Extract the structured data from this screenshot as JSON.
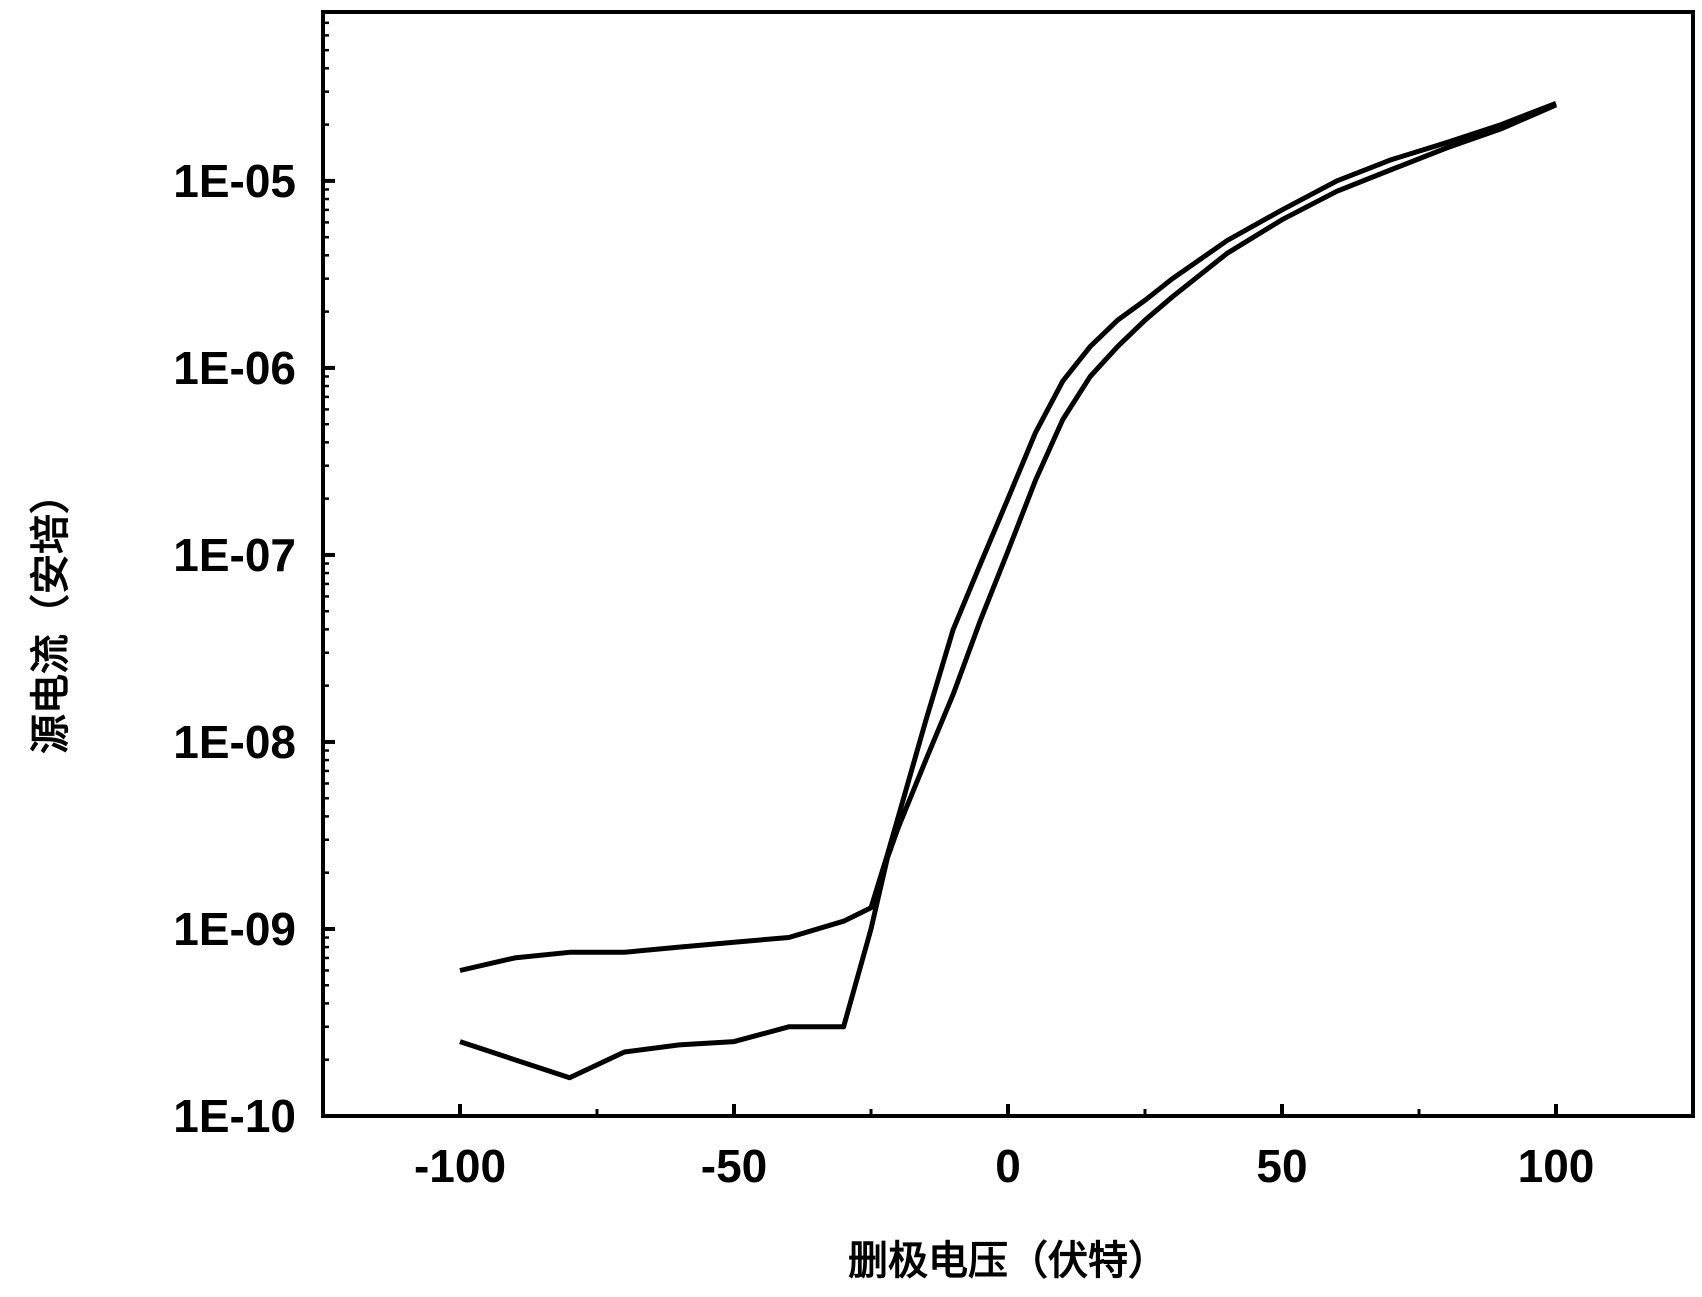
{
  "chart_data": {
    "type": "line",
    "title": "",
    "xlabel": "删极电压（伏特）",
    "ylabel": "源电流（安培）",
    "x_scale": "linear",
    "y_scale": "log",
    "xlim": [
      -125,
      125
    ],
    "ylim": [
      1e-10,
      8e-05
    ],
    "x_ticks": [
      -100,
      -50,
      0,
      50,
      100
    ],
    "x_tick_labels": [
      "-100",
      "-50",
      "0",
      "50",
      "100"
    ],
    "y_ticks": [
      1e-10,
      1e-09,
      1e-08,
      1e-07,
      1e-06,
      1e-05
    ],
    "y_tick_labels": [
      "1E-10",
      "1E-09",
      "1E-08",
      "1E-07",
      "1E-06",
      "1E-05"
    ],
    "grid": false,
    "legend": "none",
    "line_color": "#000000",
    "series": [
      {
        "x": [
          -100,
          -90,
          -80,
          -70,
          -60,
          -50,
          -40,
          -30,
          -25,
          -22,
          -20,
          -15,
          -10,
          -5,
          0,
          5,
          10,
          15,
          20,
          25,
          30,
          40,
          50,
          60,
          70,
          80,
          90,
          100
        ],
        "y": [
          6e-10,
          7e-10,
          7.5e-10,
          7.5e-10,
          8e-10,
          8.5e-10,
          9e-10,
          1.1e-09,
          1.3e-09,
          2.5e-09,
          4e-09,
          1.3e-08,
          4e-08,
          9e-08,
          2e-07,
          4.5e-07,
          8.5e-07,
          1.3e-06,
          1.8e-06,
          2.3e-06,
          3e-06,
          4.8e-06,
          7e-06,
          1e-05,
          1.3e-05,
          1.6e-05,
          2e-05,
          2.6e-05
        ]
      },
      {
        "x": [
          -100,
          -90,
          -80,
          -70,
          -60,
          -50,
          -40,
          -30,
          -25,
          -22,
          -20,
          -15,
          -10,
          -5,
          0,
          5,
          10,
          15,
          20,
          25,
          30,
          40,
          50,
          60,
          70,
          80,
          90,
          100
        ],
        "y": [
          2.5e-10,
          2e-10,
          1.6e-10,
          2.2e-10,
          2.4e-10,
          2.5e-10,
          3e-10,
          3e-10,
          1e-09,
          2.4e-09,
          3.5e-09,
          8e-09,
          1.8e-08,
          4.5e-08,
          1.05e-07,
          2.5e-07,
          5.3e-07,
          9e-07,
          1.3e-06,
          1.8e-06,
          2.4e-06,
          4.1e-06,
          6.2e-06,
          8.8e-06,
          1.15e-05,
          1.5e-05,
          1.9e-05,
          2.55e-05
        ]
      }
    ]
  }
}
